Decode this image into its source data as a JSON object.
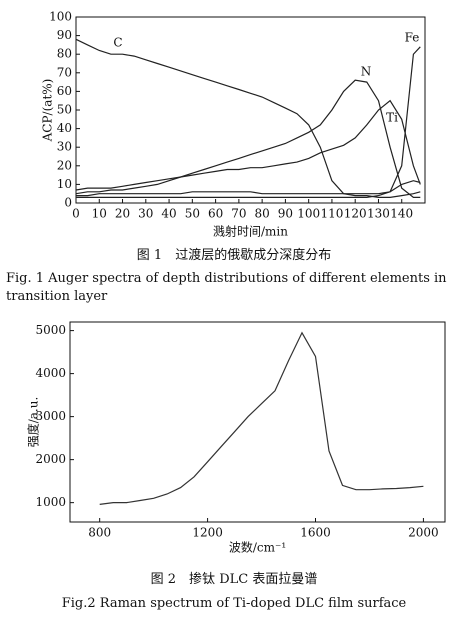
{
  "chart_data": [
    {
      "type": "line",
      "xlabel": "溅射时间/min",
      "ylabel": "ACP/(at%)",
      "x": [
        0,
        5,
        10,
        15,
        20,
        25,
        30,
        35,
        40,
        45,
        50,
        55,
        60,
        65,
        70,
        75,
        80,
        85,
        90,
        95,
        100,
        105,
        110,
        115,
        120,
        125,
        130,
        135,
        140,
        145,
        148
      ],
      "series": [
        {
          "name": "C",
          "color": "#222222",
          "values": [
            88,
            85,
            82,
            80,
            80,
            79,
            77,
            75,
            73,
            71,
            69,
            67,
            65,
            63,
            61,
            59,
            57,
            54,
            51,
            48,
            42,
            30,
            12,
            5,
            4,
            4,
            3,
            3,
            4,
            5,
            6
          ]
        },
        {
          "name": "N",
          "color": "#222222",
          "values": [
            5,
            6,
            6,
            7,
            7,
            8,
            9,
            10,
            12,
            14,
            16,
            18,
            20,
            22,
            24,
            26,
            28,
            30,
            32,
            35,
            38,
            42,
            50,
            60,
            66,
            65,
            55,
            30,
            8,
            3,
            3
          ]
        },
        {
          "name": "Ti",
          "color": "#222222",
          "values": [
            7,
            8,
            8,
            8,
            9,
            10,
            11,
            12,
            13,
            14,
            15,
            16,
            17,
            18,
            18,
            19,
            19,
            20,
            21,
            22,
            24,
            27,
            29,
            31,
            35,
            42,
            50,
            55,
            45,
            20,
            10
          ]
        },
        {
          "name": "Fe",
          "color": "#222222",
          "values": [
            3,
            3,
            3,
            3,
            3,
            3,
            3,
            3,
            3,
            3,
            3,
            3,
            3,
            3,
            3,
            3,
            3,
            3,
            3,
            3,
            3,
            3,
            3,
            3,
            3,
            3,
            4,
            6,
            20,
            80,
            84
          ]
        },
        {
          "color": "#222222",
          "values": [
            4,
            4,
            5,
            5,
            5,
            5,
            5,
            5,
            5,
            5,
            6,
            6,
            6,
            6,
            6,
            6,
            5,
            5,
            5,
            5,
            5,
            5,
            5,
            5,
            5,
            5,
            5,
            6,
            10,
            12,
            11
          ]
        }
      ],
      "xlim": [
        0,
        150
      ],
      "ylim": [
        0,
        100
      ],
      "xticks": [
        0,
        10,
        20,
        30,
        40,
        50,
        60,
        70,
        80,
        90,
        100,
        110,
        120,
        130,
        140
      ],
      "yticks": [
        0,
        10,
        20,
        30,
        40,
        50,
        60,
        70,
        80,
        90,
        100
      ],
      "caption_cn": "图 1　过渡层的俄歇成分深度分布",
      "caption_en": "Fig. 1  Auger spectra of depth distributions of different elements in transition layer"
    },
    {
      "type": "line",
      "xlabel": "波数/cm⁻¹",
      "ylabel": "强度/a.u.",
      "x": [
        800,
        850,
        900,
        950,
        1000,
        1050,
        1100,
        1150,
        1200,
        1250,
        1300,
        1350,
        1400,
        1450,
        1500,
        1550,
        1600,
        1650,
        1700,
        1750,
        1800,
        1850,
        1900,
        1950,
        2000
      ],
      "series": [
        {
          "color": "#333333",
          "values": [
            960,
            1000,
            1000,
            1050,
            1100,
            1200,
            1350,
            1600,
            1950,
            2300,
            2650,
            3000,
            3300,
            3600,
            4300,
            4950,
            4400,
            2200,
            1400,
            1300,
            1300,
            1320,
            1330,
            1350,
            1380
          ]
        }
      ],
      "xlim": [
        690,
        2080
      ],
      "ylim": [
        550,
        5200
      ],
      "xticks": [
        800,
        1200,
        1600,
        2000
      ],
      "yticks": [
        1000,
        2000,
        3000,
        4000,
        5000
      ],
      "caption_cn": "图 2　掺钛 DLC 表面拉曼谱",
      "caption_en": "Fig.2 Raman spectrum of Ti-doped DLC film surface"
    }
  ]
}
